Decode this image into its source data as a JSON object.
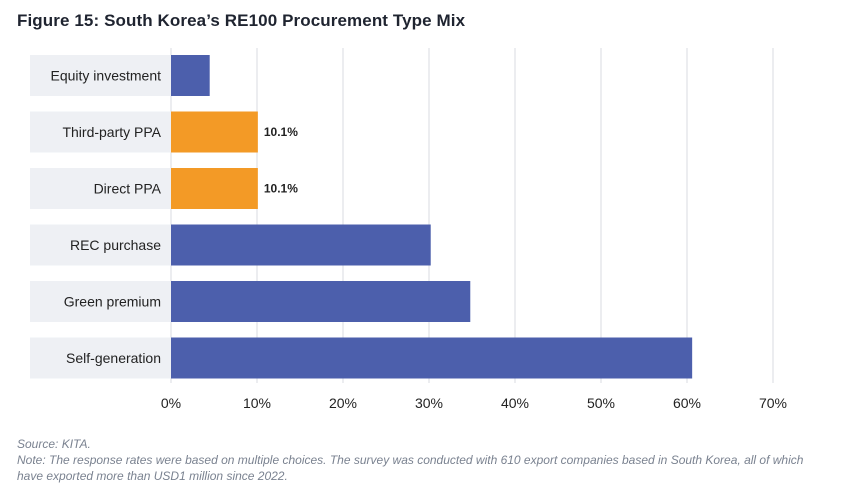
{
  "title": "Figure 15: South Korea’s RE100 Procurement Type Mix",
  "source": "Source: KITA.",
  "note": "Note: The response rates were based on multiple choices. The survey was conducted with 610 export companies based in South Korea, all of which have exported more than USD1 million since 2022.",
  "colors": {
    "primary": "#4c5fac",
    "highlight": "#f39a26",
    "label_bg": "#eef0f4",
    "grid": "#d9dbe0",
    "text": "#222222"
  },
  "chart_data": {
    "type": "bar",
    "orientation": "horizontal",
    "title": "Figure 15: South Korea’s RE100 Procurement Type Mix",
    "categories": [
      "Equity investment",
      "Third-party PPA",
      "Direct PPA",
      "REC purchase",
      "Green premium",
      "Self-generation"
    ],
    "values": [
      4.5,
      10.1,
      10.1,
      30.2,
      34.8,
      60.6
    ],
    "highlighted": [
      false,
      true,
      true,
      false,
      false,
      false
    ],
    "data_labels": [
      "",
      "10.1%",
      "10.1%",
      "",
      "",
      ""
    ],
    "xlim": [
      0,
      70
    ],
    "xticks": [
      "0%",
      "10%",
      "20%",
      "30%",
      "40%",
      "50%",
      "60%",
      "70%"
    ],
    "grid": true,
    "legend": "none",
    "xlabel": "",
    "ylabel": ""
  }
}
